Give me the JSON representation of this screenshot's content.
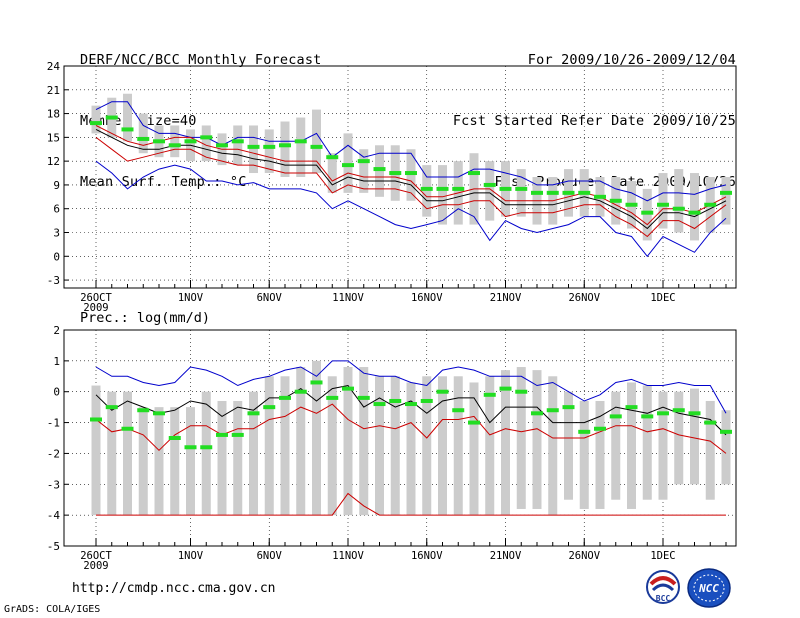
{
  "header": {
    "title": "DERF/NCC/BCC Monthly Forecast",
    "member_size": "Member Size=40",
    "variable": "Mean Surf. Temp.: °C",
    "forecast_period": "For 2009/10/26-2009/12/04",
    "fcst_started": "Fcst Started Refer Date 2009/10/25",
    "fcst_produced": "Fcst Produced Date 2009/10/26"
  },
  "footer": {
    "url": "http://cmdp.ncc.cma.gov.cn",
    "grads_credit": "GrADS: COLA/IGES",
    "logo_bcc_text": "BCC",
    "logo_ncc_text": "NCC"
  },
  "colors": {
    "envelope": "#0000cc",
    "ensemble_mean": "#000000",
    "lower_line": "#cc0000",
    "box": "#cccccc",
    "marker": "#22dd22",
    "grid": "#000000"
  },
  "chart_data": [
    {
      "type": "line",
      "title": "Mean Surf. Temp.: °C",
      "ylabel": "°C",
      "ylim": [
        -4,
        24
      ],
      "yticks": [
        24,
        21,
        18,
        15,
        12,
        9,
        6,
        3,
        0,
        -3
      ],
      "xlim": [
        0,
        40
      ],
      "xticks": [
        {
          "x": 0,
          "label": "26OCT",
          "sub": "2009"
        },
        {
          "x": 6,
          "label": "1NOV"
        },
        {
          "x": 11,
          "label": "6NOV"
        },
        {
          "x": 16,
          "label": "11NOV"
        },
        {
          "x": 21,
          "label": "16NOV"
        },
        {
          "x": 26,
          "label": "21NOV"
        },
        {
          "x": 31,
          "label": "26NOV"
        },
        {
          "x": 36,
          "label": "1DEC"
        }
      ],
      "box_low": [
        15.5,
        15,
        14.5,
        13,
        12.5,
        12.5,
        12,
        12,
        11.5,
        11.5,
        10.5,
        10.5,
        10,
        10,
        10.5,
        8,
        8,
        8,
        7.5,
        7,
        7,
        5,
        4,
        4,
        4,
        4.5,
        5,
        5,
        4,
        4,
        5,
        5,
        5,
        4,
        3.5,
        2,
        3.5,
        3,
        2,
        3,
        4
      ],
      "box_high": [
        19,
        20,
        20.5,
        18,
        16.5,
        16.5,
        16,
        16.5,
        15.5,
        16.5,
        16.5,
        16,
        17,
        17.5,
        18.5,
        13,
        15.5,
        13.5,
        14,
        14,
        13.5,
        11.5,
        11.5,
        12,
        13,
        12,
        12,
        11,
        10,
        10,
        11,
        11,
        10,
        10,
        9.5,
        8.5,
        10.5,
        11,
        10.5,
        10,
        10
      ],
      "series": [
        {
          "name": "max",
          "color": "#0000cc",
          "values": [
            18.5,
            19.5,
            19.5,
            16.5,
            15.5,
            15.5,
            15,
            15,
            14,
            15,
            15,
            14.5,
            14.5,
            14.5,
            15.5,
            12.5,
            14,
            12.5,
            13,
            13,
            13,
            10,
            10,
            10,
            11,
            11,
            10.5,
            10,
            9,
            9,
            9.5,
            9.5,
            9.5,
            8.5,
            8,
            7,
            8,
            8,
            7.8,
            8.5,
            9
          ]
        },
        {
          "name": "min",
          "color": "#0000cc",
          "values": [
            12,
            10.5,
            8.5,
            10,
            11,
            11.5,
            11,
            9.5,
            9.5,
            9,
            9.3,
            8.5,
            8.5,
            8.5,
            8,
            6,
            7,
            6,
            5,
            4,
            3.5,
            4,
            4.5,
            6,
            5,
            2,
            4.5,
            3.5,
            3,
            3.5,
            4,
            5,
            5,
            3,
            2.5,
            0,
            2.5,
            1.5,
            0.5,
            3,
            4.8
          ]
        },
        {
          "name": "mean",
          "color": "#000000",
          "values": [
            16,
            15,
            14,
            13.5,
            13.5,
            14,
            14,
            13.5,
            13,
            12.8,
            12.3,
            12,
            11.5,
            11.5,
            11.5,
            9,
            10,
            9.5,
            9.5,
            9.5,
            9,
            7,
            7,
            7.5,
            8,
            8,
            6.5,
            6.5,
            6.5,
            6.5,
            7,
            7.5,
            7,
            6,
            5,
            3.5,
            5.5,
            5.5,
            5,
            6,
            7
          ]
        },
        {
          "name": "lower",
          "color": "#cc0000",
          "values": [
            15,
            13.5,
            12,
            12.5,
            13,
            13.5,
            13.5,
            12.5,
            12,
            11.5,
            11.5,
            11,
            10.5,
            10.5,
            10.5,
            8,
            9,
            8.5,
            8.5,
            8.5,
            8,
            6,
            6.5,
            6.5,
            7,
            7,
            5,
            5.5,
            5.5,
            5.5,
            6,
            6.5,
            6.5,
            5,
            4,
            2.5,
            4.5,
            4.5,
            3.5,
            5,
            6.5
          ]
        },
        {
          "name": "upper",
          "color": "#cc0000",
          "values": [
            16.5,
            15.5,
            14.5,
            14,
            14.5,
            15,
            15,
            14,
            13.5,
            13.5,
            13,
            12.5,
            12,
            12,
            12,
            9.5,
            10.5,
            10,
            10,
            10,
            9.5,
            7.5,
            7.5,
            8,
            8.5,
            8.5,
            7,
            7,
            7,
            7,
            7.5,
            8,
            7.5,
            6.5,
            5.5,
            4,
            6,
            6,
            5.5,
            6.5,
            7.5
          ]
        }
      ],
      "markers": [
        16.8,
        17.5,
        16,
        14.8,
        14.5,
        14,
        14.5,
        15,
        14,
        14.5,
        13.8,
        13.8,
        14,
        14.5,
        13.8,
        12.5,
        11.5,
        12,
        11,
        10.5,
        10.5,
        8.5,
        8.5,
        8.5,
        10.5,
        9,
        8.5,
        8.5,
        8,
        8,
        8,
        8,
        7.5,
        7,
        6.5,
        5.5,
        6.5,
        6,
        5.5,
        6.5,
        8
      ]
    },
    {
      "type": "line",
      "title": "Prec.: log(mm/d)",
      "ylabel": "log(mm/d)",
      "ylim": [
        -5,
        2
      ],
      "yticks": [
        2,
        1,
        0,
        -1,
        -2,
        -3,
        -4,
        -5
      ],
      "xlim": [
        0,
        40
      ],
      "xticks": [
        {
          "x": 0,
          "label": "26OCT",
          "sub": "2009"
        },
        {
          "x": 6,
          "label": "1NOV"
        },
        {
          "x": 11,
          "label": "6NOV"
        },
        {
          "x": 16,
          "label": "11NOV"
        },
        {
          "x": 21,
          "label": "16NOV"
        },
        {
          "x": 26,
          "label": "21NOV"
        },
        {
          "x": 31,
          "label": "26NOV"
        },
        {
          "x": 36,
          "label": "1DEC"
        }
      ],
      "box_low": [
        -4,
        -4,
        -4,
        -4,
        -4,
        -4,
        -4,
        -4,
        -4,
        -4,
        -4,
        -4,
        -4,
        -4,
        -4,
        -4,
        -4,
        -4,
        -4,
        -4,
        -4,
        -4,
        -4,
        -4,
        -4,
        -4,
        -4,
        -3.8,
        -3.8,
        -4,
        -3.5,
        -3.8,
        -3.8,
        -3.5,
        -3.8,
        -3.5,
        -3.5,
        -3,
        -3,
        -3.5,
        -3
      ],
      "box_high": [
        0.2,
        0,
        0,
        -0.5,
        -0.5,
        -0.5,
        -0.5,
        0,
        -0.3,
        -0.3,
        0,
        0.5,
        0.5,
        0.8,
        1,
        0.5,
        0.8,
        0.8,
        0.5,
        0.5,
        0.3,
        0.5,
        0.5,
        0.5,
        0.3,
        0.5,
        0.7,
        0.8,
        0.7,
        0.5,
        0,
        -0.3,
        -0.3,
        0,
        0.3,
        0.2,
        0,
        0,
        0.1,
        -0.3,
        -0.6
      ],
      "series": [
        {
          "name": "max",
          "color": "#0000cc",
          "values": [
            0.8,
            0.5,
            0.5,
            0.3,
            0.2,
            0.3,
            0.8,
            0.7,
            0.5,
            0.2,
            0.4,
            0.5,
            0.7,
            0.8,
            0.5,
            1,
            1,
            0.6,
            0.5,
            0.5,
            0.3,
            0.2,
            0.7,
            0.8,
            0.7,
            0.5,
            0.5,
            0.5,
            0.2,
            0.3,
            0,
            -0.3,
            -0.1,
            0.3,
            0.4,
            0.2,
            0.2,
            0.3,
            0.2,
            0.2,
            -0.7
          ]
        },
        {
          "name": "mean",
          "color": "#000000",
          "values": [
            -0.1,
            -0.6,
            -0.3,
            -0.5,
            -0.7,
            -0.6,
            -0.3,
            -0.4,
            -0.8,
            -0.5,
            -0.6,
            -0.2,
            -0.2,
            0.1,
            -0.3,
            0.1,
            0.2,
            -0.5,
            -0.2,
            -0.5,
            -0.3,
            -0.7,
            -0.3,
            -0.2,
            -0.2,
            -1,
            -0.5,
            -0.5,
            -0.5,
            -1,
            -1,
            -1,
            -0.8,
            -0.5,
            -0.6,
            -0.7,
            -0.5,
            -0.7,
            -0.8,
            -0.9,
            -1.4
          ]
        },
        {
          "name": "lower",
          "color": "#cc0000",
          "values": [
            -0.9,
            -1.3,
            -1.2,
            -1.4,
            -1.9,
            -1.4,
            -1.1,
            -1.1,
            -1.4,
            -1.2,
            -1.2,
            -0.9,
            -0.8,
            -0.5,
            -0.7,
            -0.4,
            -0.9,
            -1.2,
            -1.1,
            -1.2,
            -1,
            -1.5,
            -0.9,
            -0.9,
            -0.8,
            -1.4,
            -1.2,
            -1.3,
            -1.2,
            -1.5,
            -1.5,
            -1.5,
            -1.3,
            -1.1,
            -1.1,
            -1.3,
            -1.2,
            -1.4,
            -1.5,
            -1.6,
            -2
          ]
        },
        {
          "name": "min",
          "color": "#cc0000",
          "values": [
            -4,
            -4,
            -4,
            -4,
            -4,
            -4,
            -4,
            -4,
            -4,
            -4,
            -4,
            -4,
            -4,
            -4,
            -4,
            -4,
            -3.3,
            -3.7,
            -4,
            -4,
            -4,
            -4,
            -4,
            -4,
            -4,
            -4,
            -4,
            -4,
            -4,
            -4,
            -4,
            -4,
            -4,
            -4,
            -4,
            -4,
            -4,
            -4,
            -4,
            -4,
            -4
          ]
        }
      ],
      "markers": [
        -0.9,
        -0.5,
        -1.2,
        -0.6,
        -0.7,
        -1.5,
        -1.8,
        -1.8,
        -1.4,
        -1.4,
        -0.7,
        -0.5,
        -0.2,
        0,
        0.3,
        -0.2,
        0.1,
        -0.2,
        -0.4,
        -0.3,
        -0.4,
        -0.3,
        0,
        -0.6,
        -1,
        -0.1,
        0.1,
        0,
        -0.7,
        -0.6,
        -0.5,
        -1.3,
        -1.2,
        -0.8,
        -0.5,
        -0.8,
        -0.7,
        -0.6,
        -0.7,
        -1,
        -1.3
      ]
    }
  ]
}
